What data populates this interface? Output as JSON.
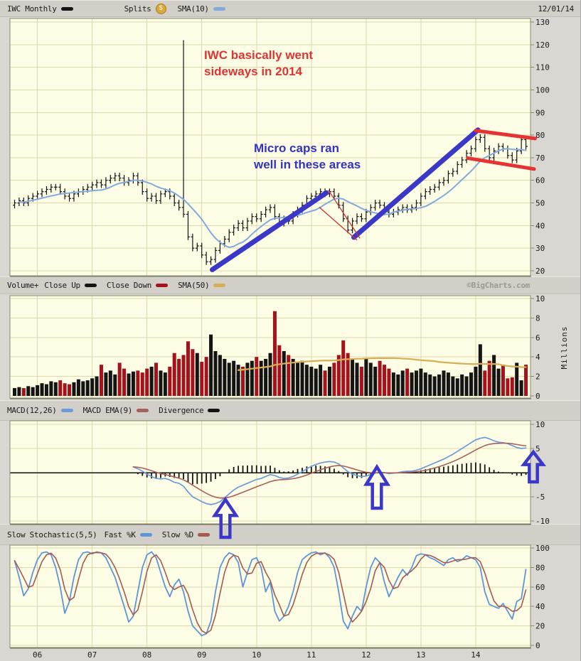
{
  "header": {
    "series_label": "IWC Monthly",
    "splits_label": "Splits",
    "splits_badge": "S",
    "sma_label": "SMA(10)",
    "date": "12/01/14"
  },
  "legends": {
    "volume": {
      "title": "Volume+",
      "up": "Close Up",
      "down": "Close Down",
      "sma": "SMA(50)",
      "credit": "©BigCharts.com"
    },
    "macd": {
      "macd": "MACD(12,26)",
      "ema": "MACD EMA(9)",
      "divergence": "Divergence"
    },
    "stoch": {
      "title": "Slow Stochastic(5,5)",
      "k": "Fast %K",
      "d": "Slow %D"
    }
  },
  "annotations": {
    "red_note": [
      "IWC basically went",
      "sideways in 2014"
    ],
    "blue_note": [
      "Micro caps ran",
      "well in these areas"
    ]
  },
  "axes": {
    "years": [
      "06",
      "07",
      "08",
      "09",
      "10",
      "11",
      "12",
      "13",
      "14"
    ],
    "price_ticks": [
      130,
      120,
      110,
      100,
      90,
      80,
      70,
      60,
      50,
      40,
      30,
      20
    ],
    "volume_ticks": [
      10,
      8,
      6,
      4,
      2,
      0
    ],
    "volume_unit": "Millions",
    "macd_ticks": [
      10,
      5,
      -5,
      -10
    ],
    "stoch_ticks": [
      100,
      80,
      60,
      40,
      20,
      0
    ]
  },
  "colors": {
    "page_bg": "#d9d7d2",
    "legend_bg": "#d2cfc8",
    "plot_bg": "#fdfce4",
    "grid": "#ddd8ab",
    "frame": "#8b8b72",
    "axis_text": "#1c1c1c",
    "price_bar": "#141414",
    "sma10": "#82abdd",
    "vol_up": "#141414",
    "vol_down": "#a5121c",
    "sma50": "#d8ad55",
    "macd_line": "#6b9bd9",
    "macd_ema": "#a8605c",
    "divergence": "#141414",
    "stoch_k": "#5e95d8",
    "stoch_d": "#a55a50",
    "note_red": "#e03434",
    "note_blue": "#3232c4",
    "annot_blue": "#3b38c8",
    "annot_red": "#e63232",
    "thin_red": "#cc3333",
    "credit": "#9b9993",
    "splits_gold": "#d9a93f",
    "zero_line": "#111111"
  },
  "chart_data": [
    {
      "type": "ohlc-bar",
      "name": "price",
      "title": "IWC Monthly",
      "start_month": "2005-08",
      "end_month": "2014-12",
      "ylim": [
        20,
        130
      ],
      "bar_range": 1.4,
      "spike_bar": {
        "index": 37,
        "high": 122
      },
      "overlay_sma_period": 10,
      "closes": [
        50,
        51,
        50,
        52,
        53,
        54,
        55,
        56,
        57,
        57,
        55,
        53,
        52,
        54,
        55,
        56,
        57,
        58,
        59,
        58,
        60,
        61,
        62,
        61,
        59,
        60,
        62,
        59,
        55,
        52,
        53,
        51,
        54,
        55,
        53,
        50,
        48,
        45,
        35,
        30,
        31,
        27,
        24,
        25,
        29,
        32,
        34,
        37,
        39,
        41,
        39,
        42,
        44,
        43,
        45,
        47,
        48,
        44,
        41,
        43,
        42,
        45,
        47,
        49,
        52,
        53,
        54,
        55,
        54,
        55,
        53,
        49,
        43,
        38,
        42,
        44,
        43,
        46,
        48,
        50,
        49,
        46,
        45,
        46,
        47,
        48,
        47,
        48,
        50,
        53,
        55,
        56,
        57,
        59,
        60,
        63,
        64,
        67,
        69,
        72,
        74,
        78,
        79,
        74,
        70,
        73,
        75,
        74,
        71,
        69,
        73,
        78,
        75
      ],
      "trend_lines": [
        {
          "name": "blue-uptrend-2009-2011",
          "from_month": 43.3,
          "from_value": 20.5,
          "to_month": 68.3,
          "to_value": 54.5,
          "color_key": "annot_blue",
          "width": 7
        },
        {
          "name": "blue-uptrend-2012-2014",
          "from_month": 74.3,
          "from_value": 34.8,
          "to_month": 101.5,
          "to_value": 82.3,
          "color_key": "annot_blue",
          "width": 7
        },
        {
          "name": "red-channel-top-2014",
          "from_month": 101.0,
          "from_value": 82.0,
          "to_month": 114.0,
          "to_value": 78.5,
          "color_key": "annot_red",
          "width": 5
        },
        {
          "name": "red-channel-bottom-2014",
          "from_month": 99.3,
          "from_value": 69.8,
          "to_month": 113.8,
          "to_value": 65.0,
          "color_key": "annot_red",
          "width": 5
        },
        {
          "name": "red-thin-channel-top-2011",
          "from_month": 68.8,
          "from_value": 55.5,
          "to_month": 75.6,
          "to_value": 34.5,
          "color_key": "thin_red",
          "width": 1.3
        },
        {
          "name": "red-thin-channel-bottom-2011",
          "from_month": 66.8,
          "from_value": 48.0,
          "to_month": 74.9,
          "to_value": 33.7,
          "color_key": "thin_red",
          "width": 1.3
        }
      ]
    },
    {
      "type": "bar",
      "name": "volume",
      "unit": "millions",
      "ylim": [
        0,
        10
      ],
      "sma_period": 50,
      "values": [
        0.8,
        0.9,
        0.8,
        1.0,
        0.9,
        1.1,
        1.3,
        1.2,
        1.5,
        1.4,
        1.6,
        1.3,
        1.2,
        1.4,
        1.7,
        1.5,
        1.6,
        1.8,
        2.0,
        3.2,
        2.4,
        2.6,
        2.2,
        3.4,
        2.8,
        2.3,
        2.5,
        2.6,
        2.4,
        2.8,
        3.0,
        3.4,
        2.6,
        2.4,
        3.0,
        4.4,
        3.8,
        4.2,
        5.6,
        4.8,
        4.4,
        3.5,
        4.0,
        6.3,
        4.6,
        4.2,
        3.8,
        3.4,
        3.6,
        3.2,
        3.0,
        3.4,
        3.6,
        4.0,
        3.6,
        3.8,
        4.4,
        8.7,
        5.2,
        4.6,
        4.2,
        3.8,
        3.4,
        3.6,
        3.2,
        3.0,
        2.8,
        3.2,
        2.6,
        3.0,
        3.4,
        4.2,
        5.7,
        4.4,
        3.8,
        3.4,
        3.0,
        3.8,
        3.4,
        3.0,
        3.6,
        3.2,
        2.8,
        2.4,
        2.2,
        2.6,
        2.8,
        2.4,
        2.6,
        2.8,
        2.4,
        2.2,
        2.0,
        2.2,
        2.6,
        2.4,
        2.0,
        1.8,
        2.2,
        2.0,
        2.4,
        3.0,
        5.3,
        2.6,
        3.6,
        4.2,
        2.8,
        3.2,
        1.8,
        1.9,
        3.4,
        1.6,
        3.2
      ]
    },
    {
      "type": "line",
      "name": "macd",
      "ylim": [
        -10,
        10
      ],
      "start_index": 26,
      "ema_period": 9,
      "macd": [
        1.2,
        0.8,
        0.3,
        -0.3,
        -0.8,
        -1.2,
        -1.3,
        -1.2,
        -1.5,
        -2.0,
        -2.2,
        -2.8,
        -4.0,
        -5.0,
        -5.5,
        -6.0,
        -6.4,
        -6.6,
        -6.4,
        -6.0,
        -5.2,
        -4.4,
        -3.6,
        -3.0,
        -2.6,
        -2.2,
        -1.8,
        -1.4,
        -1.2,
        -0.8,
        -0.4,
        -0.6,
        -1.0,
        -1.2,
        -1.1,
        -0.8,
        -0.3,
        0.2,
        0.8,
        1.3,
        1.7,
        2.0,
        2.2,
        2.3,
        2.2,
        1.8,
        1.0,
        0.2,
        -0.3,
        -0.6,
        -0.8,
        -0.7,
        -0.4,
        -0.1,
        0.1,
        0.0,
        -0.2,
        -0.1,
        0.0,
        0.2,
        0.3,
        0.3,
        0.5,
        0.8,
        1.2,
        1.6,
        2.0,
        2.4,
        2.8,
        3.3,
        3.8,
        4.4,
        5.0,
        5.6,
        6.2,
        6.8,
        7.1,
        7.3,
        7.0,
        6.6,
        6.3,
        6.2,
        6.0,
        5.6,
        5.2,
        5.0,
        5.1
      ],
      "arrows": [
        {
          "name": "buy-arrow-2009",
          "x": 317,
          "top": 703,
          "h": 53,
          "w": 30
        },
        {
          "name": "buy-arrow-2012",
          "x": 530,
          "top": 657,
          "h": 58,
          "w": 30
        },
        {
          "name": "buy-arrow-2014",
          "x": 750,
          "top": 636,
          "h": 42,
          "w": 27
        }
      ]
    },
    {
      "type": "line",
      "name": "slow-stochastic",
      "ylim": [
        0,
        100
      ],
      "d_period": 3,
      "k": [
        87,
        70,
        51,
        58,
        75,
        88,
        95,
        96,
        93,
        80,
        60,
        33,
        45,
        70,
        88,
        95,
        96,
        94,
        96,
        95,
        90,
        80,
        70,
        55,
        40,
        24,
        30,
        55,
        80,
        93,
        96,
        90,
        75,
        60,
        50,
        62,
        68,
        55,
        35,
        20,
        15,
        10,
        12,
        25,
        55,
        80,
        90,
        95,
        93,
        85,
        60,
        75,
        88,
        90,
        80,
        55,
        65,
        35,
        25,
        30,
        40,
        55,
        75,
        88,
        92,
        95,
        96,
        93,
        95,
        90,
        80,
        55,
        25,
        17,
        30,
        40,
        35,
        60,
        80,
        90,
        85,
        65,
        50,
        60,
        70,
        78,
        72,
        80,
        92,
        94,
        93,
        90,
        88,
        85,
        82,
        88,
        90,
        86,
        88,
        92,
        90,
        88,
        80,
        55,
        42,
        40,
        38,
        43,
        35,
        27,
        45,
        48,
        78
      ]
    }
  ]
}
